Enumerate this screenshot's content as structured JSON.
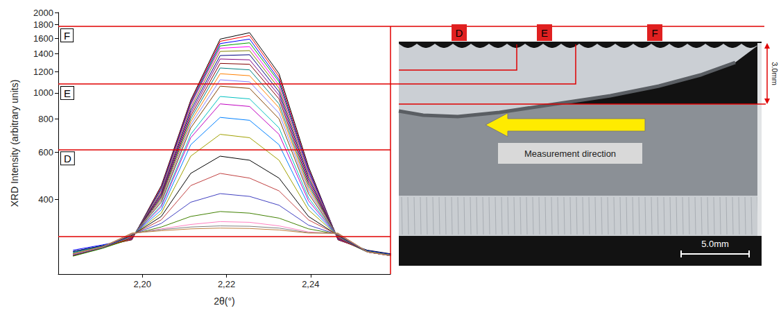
{
  "chart_data": {
    "type": "line",
    "x_label": "2θ(°)",
    "y_label": "XRD Intensity (arbitrary units)",
    "log": "y",
    "grid": false,
    "xlim": [
      2.18,
      2.259
    ],
    "xticks": [
      {
        "value": 2.2,
        "label": "2,20"
      },
      {
        "value": 2.22,
        "label": "2,22"
      },
      {
        "value": 2.24,
        "label": "2,24"
      }
    ],
    "ylim": [
      210,
      2000
    ],
    "yticks": [
      400,
      600,
      800,
      1000,
      1200,
      1400,
      1600,
      1800,
      2000
    ],
    "x": [
      2.1835,
      2.1905,
      2.1975,
      2.2045,
      2.2115,
      2.2185,
      2.2255,
      2.2325,
      2.2395,
      2.2465,
      2.2535,
      2.2605
    ],
    "series": [
      {
        "color": "#000000",
        "values": [
          255,
          268,
          282,
          450,
          940,
          1590,
          1680,
          1180,
          530,
          282,
          258,
          248
        ]
      },
      {
        "color": "#ff0000",
        "values": [
          250,
          265,
          283,
          445,
          930,
          1560,
          1640,
          1150,
          520,
          283,
          256,
          246
        ]
      },
      {
        "color": "#0000ff",
        "values": [
          258,
          270,
          284,
          440,
          920,
          1530,
          1590,
          1120,
          515,
          284,
          257,
          247
        ]
      },
      {
        "color": "#00a000",
        "values": [
          245,
          262,
          285,
          435,
          910,
          1500,
          1540,
          1100,
          505,
          285,
          254,
          245
        ]
      },
      {
        "color": "#ff00ff",
        "values": [
          252,
          266,
          285,
          430,
          900,
          1470,
          1490,
          1070,
          500,
          285,
          255,
          246
        ]
      },
      {
        "color": "#808000",
        "values": [
          248,
          264,
          286,
          425,
          880,
          1430,
          1440,
          1040,
          490,
          286,
          255,
          245
        ]
      },
      {
        "color": "#000080",
        "values": [
          255,
          268,
          286,
          420,
          860,
          1380,
          1390,
          1010,
          480,
          286,
          256,
          246
        ]
      },
      {
        "color": "#800080",
        "values": [
          250,
          265,
          287,
          415,
          840,
          1340,
          1330,
          980,
          470,
          287,
          255,
          245
        ]
      },
      {
        "color": "#800000",
        "values": [
          246,
          263,
          287,
          410,
          820,
          1290,
          1280,
          950,
          460,
          287,
          254,
          244
        ]
      },
      {
        "color": "#008080",
        "values": [
          253,
          267,
          288,
          405,
          800,
          1240,
          1220,
          910,
          450,
          288,
          256,
          246
        ]
      },
      {
        "color": "#ff8000",
        "values": [
          249,
          264,
          288,
          400,
          780,
          1180,
          1160,
          880,
          440,
          288,
          255,
          245
        ]
      },
      {
        "color": "#8080ff",
        "values": [
          251,
          266,
          289,
          395,
          760,
          1120,
          1100,
          840,
          430,
          289,
          255,
          245
        ]
      },
      {
        "color": "#804000",
        "values": [
          247,
          264,
          289,
          390,
          740,
          1060,
          1040,
          800,
          420,
          289,
          254,
          244
        ]
      },
      {
        "color": "#00c0c0",
        "values": [
          252,
          266,
          290,
          380,
          700,
          970,
          950,
          740,
          405,
          290,
          255,
          245
        ]
      },
      {
        "color": "#c000c0",
        "values": [
          250,
          265,
          290,
          375,
          680,
          910,
          890,
          700,
          395,
          290,
          255,
          245
        ]
      },
      {
        "color": "#0080ff",
        "values": [
          248,
          264,
          291,
          365,
          640,
          810,
          790,
          640,
          380,
          291,
          254,
          244
        ]
      },
      {
        "color": "#a0a000",
        "values": [
          251,
          266,
          292,
          355,
          580,
          700,
          680,
          560,
          365,
          292,
          255,
          245
        ]
      },
      {
        "color": "#000000",
        "values": [
          249,
          265,
          293,
          345,
          500,
          580,
          560,
          480,
          345,
          293,
          254,
          244
        ]
      },
      {
        "color": "#c04040",
        "values": [
          250,
          266,
          294,
          335,
          450,
          500,
          480,
          430,
          335,
          294,
          255,
          245
        ]
      },
      {
        "color": "#4040c0",
        "values": [
          248,
          265,
          295,
          325,
          390,
          420,
          410,
          380,
          320,
          295,
          254,
          244
        ]
      },
      {
        "color": "#408000",
        "values": [
          250,
          266,
          296,
          315,
          345,
          360,
          355,
          340,
          310,
          296,
          255,
          245
        ]
      },
      {
        "color": "#ff80c0",
        "values": [
          249,
          265,
          297,
          310,
          322,
          330,
          328,
          318,
          302,
          297,
          254,
          244
        ]
      },
      {
        "color": "#808080",
        "values": [
          251,
          266,
          298,
          308,
          315,
          318,
          317,
          312,
          300,
          298,
          255,
          245
        ]
      },
      {
        "color": "#c08040",
        "values": [
          250,
          265,
          299,
          305,
          310,
          312,
          311,
          307,
          299,
          299,
          254,
          244
        ]
      }
    ],
    "reference_lines": [
      {
        "label": "F",
        "y": 1775
      },
      {
        "label": "E",
        "y": 1080
      },
      {
        "label": "D",
        "y": 615
      },
      {
        "y": 290
      }
    ],
    "annotations": [
      "Measurement direction",
      "3.0mm",
      "5.0mm"
    ]
  }
}
